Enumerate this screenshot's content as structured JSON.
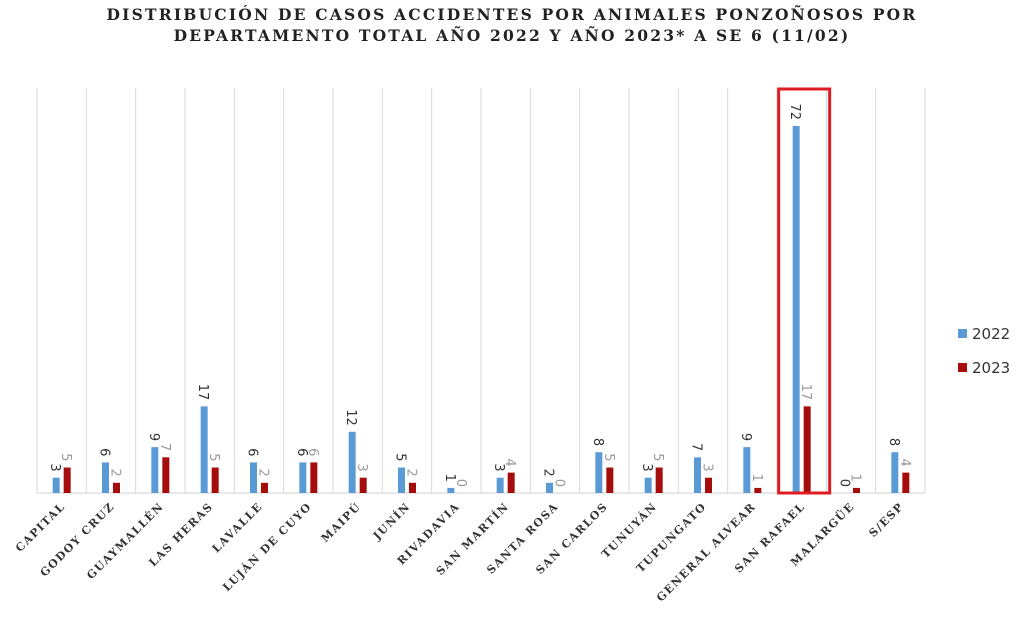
{
  "chart_data": {
    "type": "bar",
    "title": [
      "DISTRIBUCIÓN DE CASOS ACCIDENTES POR ANIMALES PONZOÑOSOS POR",
      "DEPARTAMENTO TOTAL AÑO 2022 Y AÑO 2023* A SE 6 (11/02)"
    ],
    "categories": [
      "CAPITAL",
      "GODOY CRUZ",
      "GUAYMALLÉN",
      "LAS HERAS",
      "LAVALLE",
      "LUJÁN DE CUYO",
      "MAIPÚ",
      "JUNÍN",
      "RIVADAVIA",
      "SAN MARTÍN",
      "SANTA ROSA",
      "SAN CARLOS",
      "TUNUYÁN",
      "TUPUNGATO",
      "GENERAL ALVEAR",
      "SAN RAFAEL",
      "MALARGÜE",
      "S/ESP"
    ],
    "series": [
      {
        "name": "2022",
        "values": [
          3,
          6,
          9,
          17,
          6,
          6,
          12,
          5,
          1,
          3,
          2,
          8,
          3,
          7,
          9,
          72,
          0,
          8
        ],
        "color": "#5b9bd5"
      },
      {
        "name": "2023",
        "values": [
          5,
          2,
          7,
          5,
          2,
          6,
          3,
          2,
          0,
          4,
          0,
          5,
          5,
          3,
          1,
          17,
          1,
          4
        ],
        "color": "#a50d0d"
      }
    ],
    "ylim": [
      0,
      80
    ],
    "grid": "vertical",
    "legend": "right",
    "highlight": {
      "category": "SAN RAFAEL",
      "color": "#e01b22"
    }
  }
}
